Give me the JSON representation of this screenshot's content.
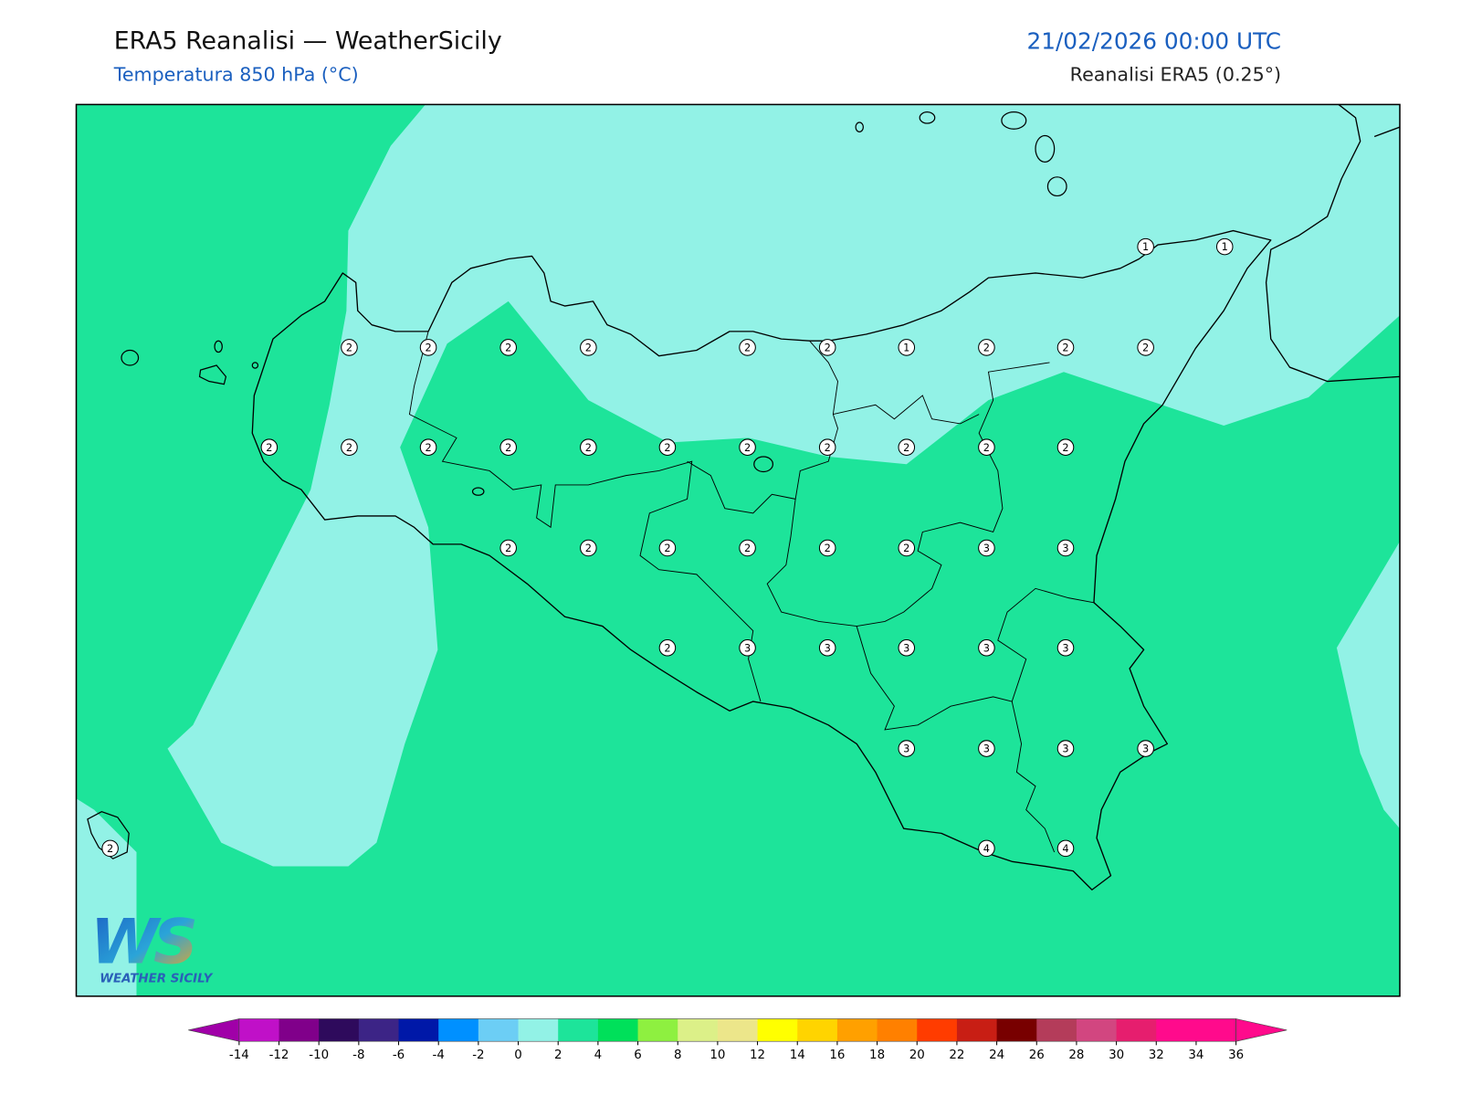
{
  "header": {
    "title": "ERA5 Reanalisi — WeatherSicily",
    "subtitle": "Temperatura 850 hPa (°C)",
    "datetime": "21/02/2026 00:00 UTC",
    "source": "Reanalisi ERA5 (0.25°)"
  },
  "logo": {
    "initials": "WS",
    "name": "WEATHER SICILY"
  },
  "stations": {
    "values": [
      1,
      1,
      2,
      2,
      2,
      2,
      2,
      2,
      1,
      2,
      2,
      2,
      2,
      2,
      2,
      2,
      2,
      2,
      2,
      2,
      2,
      2,
      2,
      2,
      2,
      2,
      2,
      2,
      2,
      3,
      3,
      2,
      3,
      3,
      3,
      3,
      3,
      3,
      3,
      3,
      3,
      2,
      4,
      4
    ]
  },
  "colorbar": {
    "ticks": [
      -14,
      -12,
      -10,
      -8,
      -6,
      -4,
      -2,
      0,
      2,
      4,
      6,
      8,
      10,
      12,
      14,
      16,
      18,
      20,
      22,
      24,
      26,
      28,
      30,
      32,
      34,
      36
    ],
    "colors": [
      "#a000a8",
      "#c010c8",
      "#80008a",
      "#2e0a5c",
      "#3c2486",
      "#0018a8",
      "#0090ff",
      "#6ccef5",
      "#92f2e6",
      "#1de49a",
      "#00e05a",
      "#8ef040",
      "#dcf088",
      "#ece68a",
      "#ffff00",
      "#ffd400",
      "#ffa000",
      "#ff8000",
      "#ff3c00",
      "#c81e14",
      "#780000",
      "#b43c5a",
      "#d24680",
      "#e61e6e",
      "#ff0a8c",
      "#ff0a8c",
      "#ff0a8c"
    ]
  }
}
